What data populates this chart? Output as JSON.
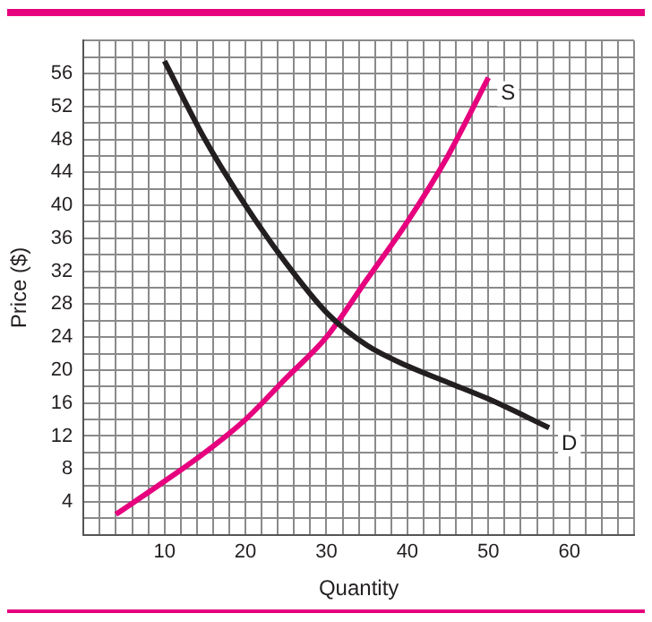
{
  "chart_data": {
    "type": "line",
    "xlabel": "Quantity",
    "ylabel": "Price ($)",
    "xlim": [
      0,
      68
    ],
    "ylim": [
      0,
      60
    ],
    "xticks": [
      {
        "value": 0,
        "label": null
      },
      {
        "value": 2,
        "label": null
      },
      {
        "value": 4,
        "label": null
      },
      {
        "value": 6,
        "label": null
      },
      {
        "value": 8,
        "label": null
      },
      10,
      {
        "value": 12,
        "label": null
      },
      {
        "value": 14,
        "label": null
      },
      {
        "value": 16,
        "label": null
      },
      {
        "value": 18,
        "label": null
      },
      20,
      {
        "value": 22,
        "label": null
      },
      {
        "value": 24,
        "label": null
      },
      {
        "value": 26,
        "label": null
      },
      {
        "value": 28,
        "label": null
      },
      30,
      {
        "value": 32,
        "label": null
      },
      {
        "value": 34,
        "label": null
      },
      {
        "value": 36,
        "label": null
      },
      {
        "value": 38,
        "label": null
      },
      40,
      {
        "value": 42,
        "label": null
      },
      {
        "value": 44,
        "label": null
      },
      {
        "value": 46,
        "label": null
      },
      {
        "value": 48,
        "label": null
      },
      50,
      {
        "value": 52,
        "label": null
      },
      {
        "value": 54,
        "label": null
      },
      {
        "value": 56,
        "label": null
      },
      {
        "value": 58,
        "label": null
      },
      60,
      {
        "value": 62,
        "label": null
      },
      {
        "value": 64,
        "label": null
      },
      {
        "value": 66,
        "label": null
      },
      {
        "value": 68,
        "label": null
      }
    ],
    "yticks": [
      {
        "value": 0,
        "label": null
      },
      {
        "value": 2,
        "label": null
      },
      4,
      {
        "value": 6,
        "label": null
      },
      8,
      {
        "value": 10,
        "label": null
      },
      12,
      {
        "value": 14,
        "label": null
      },
      16,
      {
        "value": 18,
        "label": null
      },
      20,
      {
        "value": 22,
        "label": null
      },
      24,
      {
        "value": 26,
        "label": null
      },
      28,
      {
        "value": 30,
        "label": null
      },
      32,
      {
        "value": 34,
        "label": null
      },
      36,
      {
        "value": 38,
        "label": null
      },
      40,
      {
        "value": 42,
        "label": null
      },
      44,
      {
        "value": 46,
        "label": null
      },
      48,
      {
        "value": 50,
        "label": null
      },
      52,
      {
        "value": 54,
        "label": null
      },
      56,
      {
        "value": 58,
        "label": null
      },
      {
        "value": 60,
        "label": null
      }
    ],
    "grid": true,
    "legend": false,
    "marker": "none",
    "line_style": "solid",
    "series": [
      {
        "name": "D",
        "color": "#231f20",
        "x": [
          10,
          15,
          20,
          25,
          30,
          35,
          40,
          45,
          50,
          57.5
        ],
        "values": [
          57.5,
          48,
          40,
          33,
          27,
          23,
          20.5,
          18.5,
          16.5,
          13
        ]
      },
      {
        "name": "S",
        "color": "#e6007e",
        "x": [
          4,
          10,
          15,
          20,
          25,
          30,
          35,
          40,
          45,
          50
        ],
        "values": [
          2.5,
          6.5,
          10,
          14,
          19,
          24,
          31,
          38,
          46,
          55.5
        ]
      }
    ]
  }
}
